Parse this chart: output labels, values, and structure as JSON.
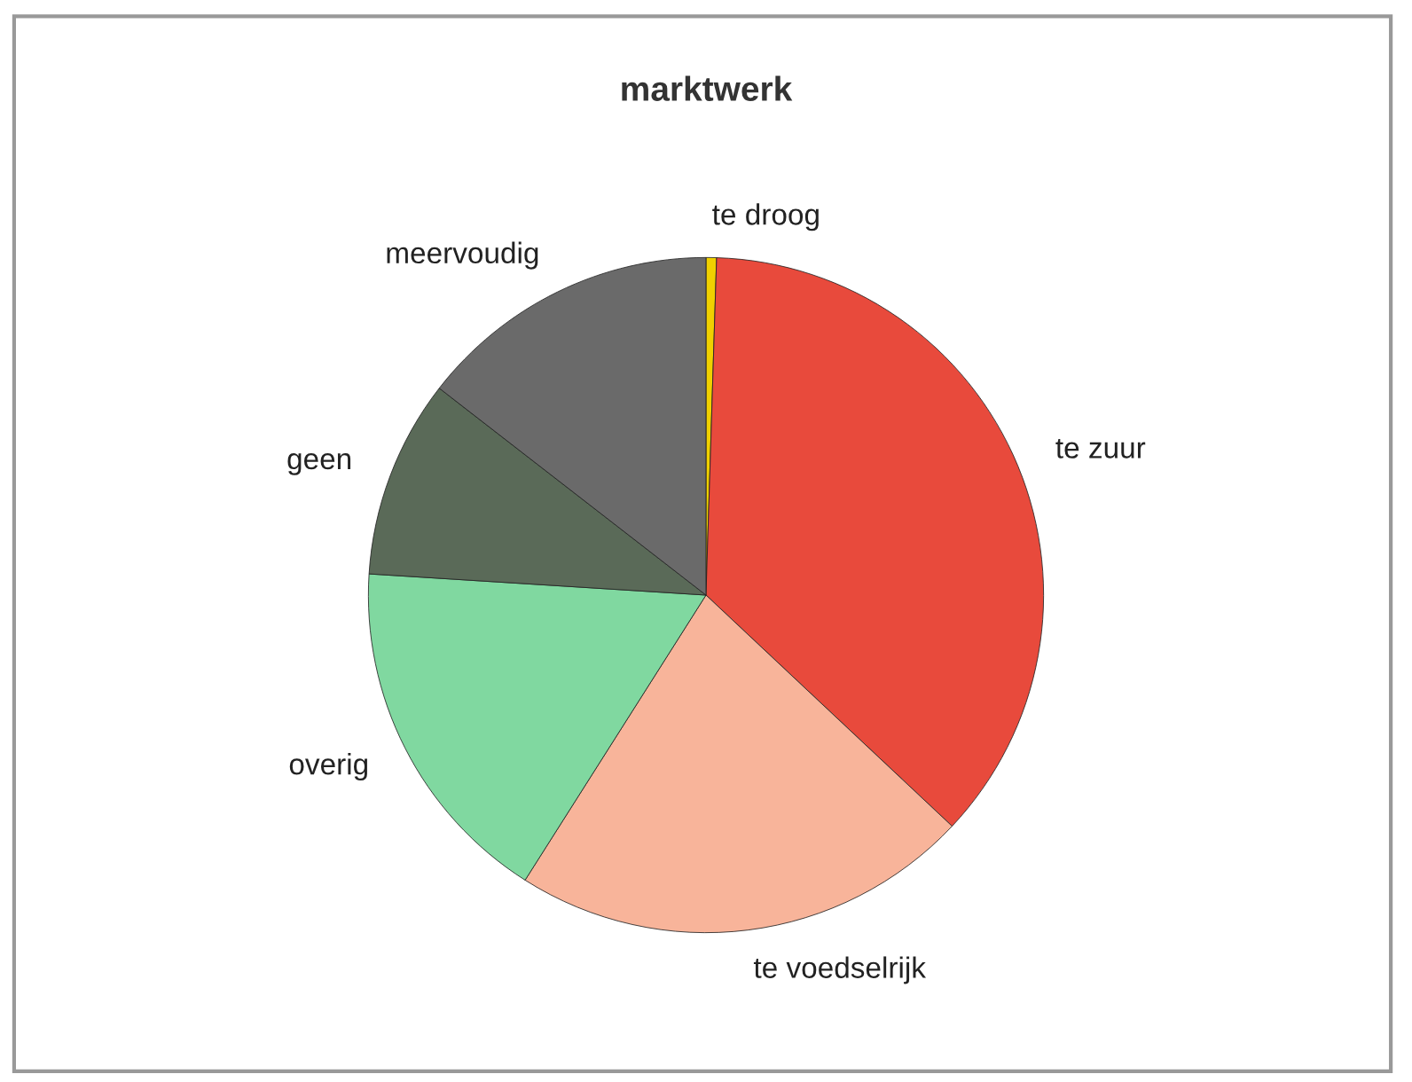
{
  "chart_data": {
    "type": "pie",
    "title": "marktwerk",
    "categories": [
      "te droog",
      "te zuur",
      "te voedselrijk",
      "overig",
      "geen",
      "meervoudig"
    ],
    "values": [
      0.5,
      36.5,
      22,
      17,
      9.5,
      14.5
    ],
    "colors": [
      "#f0d000",
      "#e84a3c",
      "#f8b49a",
      "#80d8a0",
      "#5a6a58",
      "#6a6a6a"
    ],
    "legend": false
  }
}
